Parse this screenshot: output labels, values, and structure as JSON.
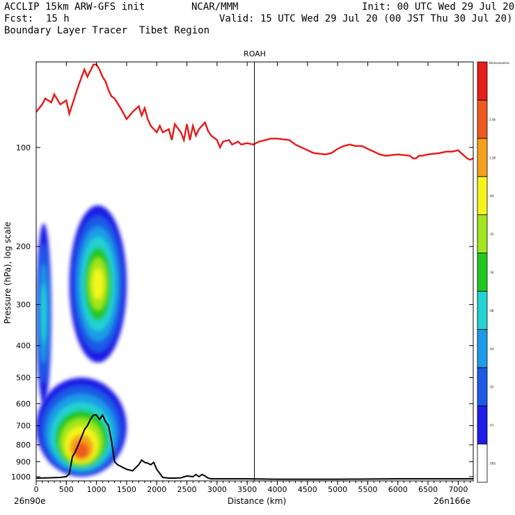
{
  "header": {
    "model_line": "ACCLIP 15km ARW-GFS init",
    "org": "NCAR/MMM",
    "init": "Init: 00 UTC Wed 29 Jul 20",
    "fcst_label": "Fcst:",
    "fcst_value": "15 h",
    "valid": "Valid: 15 UTC Wed 29 Jul 20 (00 JST Thu 30 Jul 20)",
    "product": "Boundary Layer Tracer  Tibet Region"
  },
  "chart_data": {
    "type": "area",
    "title": "ROAH",
    "xlabel": "Distance (km)",
    "ylabel": "Pressure (hPa), log scale",
    "x_start_label": "26n90e",
    "x_end_label": "26n166e",
    "xlim": [
      0,
      7250
    ],
    "ylim": [
      1030,
      55
    ],
    "y_scale": "log",
    "x_ticks": [
      0,
      500,
      1000,
      1500,
      2000,
      2500,
      3000,
      3500,
      4000,
      4500,
      5000,
      5500,
      6000,
      6500,
      7000
    ],
    "y_ticks": [
      100,
      200,
      300,
      400,
      500,
      600,
      700,
      800,
      900,
      1000
    ],
    "marker_line_x": 3620,
    "colorbar": {
      "unit_label": "Dimensionless",
      "levels": [
        ".005",
        ".01",
        ".02",
        ".04",
        ".08",
        ".16",
        ".32",
        ".64",
        "1.28",
        "2.56"
      ],
      "colors": [
        "#ffffff",
        "#1e1ee6",
        "#1e5ae6",
        "#1e9be6",
        "#20d2d2",
        "#20c820",
        "#a0e61e",
        "#f5f51e",
        "#f5a01e",
        "#f05a1e",
        "#e61e1e"
      ]
    },
    "series": [
      {
        "name": "",
        "kind": "tropopause",
        "color": "#e61e1e",
        "x": [
          0,
          100,
          150,
          250,
          300,
          400,
          500,
          550,
          600,
          700,
          800,
          850,
          950,
          1000,
          1050,
          1100,
          1150,
          1200,
          1250,
          1300,
          1400,
          1500,
          1550,
          1600,
          1700,
          1750,
          1800,
          1850,
          1900,
          2000,
          2050,
          2100,
          2200,
          2250,
          2300,
          2400,
          2450,
          2500,
          2550,
          2600,
          2650,
          2700,
          2800,
          2850,
          2900,
          3000,
          3050,
          3100,
          3200,
          3250,
          3300,
          3350,
          3400,
          3500,
          3600,
          3700,
          3800,
          3900,
          4000,
          4200,
          4300,
          4400,
          4600,
          4800,
          4900,
          5000,
          5100,
          5200,
          5300,
          5400,
          5500,
          5600,
          5700,
          5800,
          6000,
          6200,
          6250,
          6300,
          6350,
          6400,
          6500,
          6700,
          6800,
          6900,
          7000,
          7050,
          7100,
          7150,
          7200,
          7250
        ],
        "y": [
          78,
          74,
          71,
          73,
          69,
          74,
          72,
          79,
          74,
          65,
          58,
          61,
          56,
          56,
          58,
          61,
          63,
          67,
          70,
          71,
          76,
          82,
          80,
          78,
          75,
          80,
          76,
          82,
          86,
          90,
          86,
          90,
          88,
          95,
          85,
          90,
          95,
          85,
          95,
          86,
          92,
          88,
          84,
          89,
          92,
          95,
          100,
          96,
          95,
          98,
          97,
          96,
          98,
          97,
          98,
          96,
          95,
          94,
          94,
          95,
          98,
          100,
          104,
          105,
          104,
          101,
          99,
          98,
          99,
          99,
          101,
          103,
          105,
          106,
          105,
          106,
          108,
          108,
          106,
          106,
          105,
          104,
          103,
          103,
          102,
          104,
          106,
          108,
          109,
          108
        ]
      },
      {
        "name": "",
        "kind": "terrain",
        "color": "#000000",
        "x": [
          0,
          200,
          400,
          500,
          550,
          600,
          650,
          700,
          750,
          800,
          850,
          900,
          950,
          1000,
          1050,
          1100,
          1150,
          1200,
          1250,
          1300,
          1350,
          1400,
          1500,
          1600,
          1700,
          1750,
          1800,
          1850,
          1900,
          1950,
          2000,
          2100,
          2200,
          2300,
          2400,
          2500,
          2600,
          2650,
          2700,
          2750,
          2800,
          2850,
          2900,
          3000,
          3500,
          4000,
          5000,
          6000,
          7000,
          7250
        ],
        "y": [
          1010,
          1008,
          1005,
          1000,
          980,
          870,
          840,
          800,
          760,
          720,
          700,
          670,
          650,
          650,
          670,
          650,
          680,
          700,
          780,
          900,
          920,
          930,
          950,
          960,
          920,
          890,
          905,
          910,
          920,
          905,
          950,
          1005,
          1010,
          1010,
          1008,
          995,
          1000,
          985,
          1000,
          985,
          995,
          1010,
          1015,
          1015,
          1015,
          1018,
          1018,
          1015,
          1015,
          1015
        ]
      }
    ],
    "tracer_regions": [
      {
        "name": "low-level plume",
        "x": [
          0,
          1500
        ],
        "y": [
          1000,
          500
        ]
      },
      {
        "name": "upper plume",
        "x": [
          550,
          1500
        ],
        "y": [
          450,
          150
        ]
      },
      {
        "name": "left column",
        "x": [
          0,
          250
        ],
        "y": [
          600,
          170
        ]
      }
    ]
  }
}
